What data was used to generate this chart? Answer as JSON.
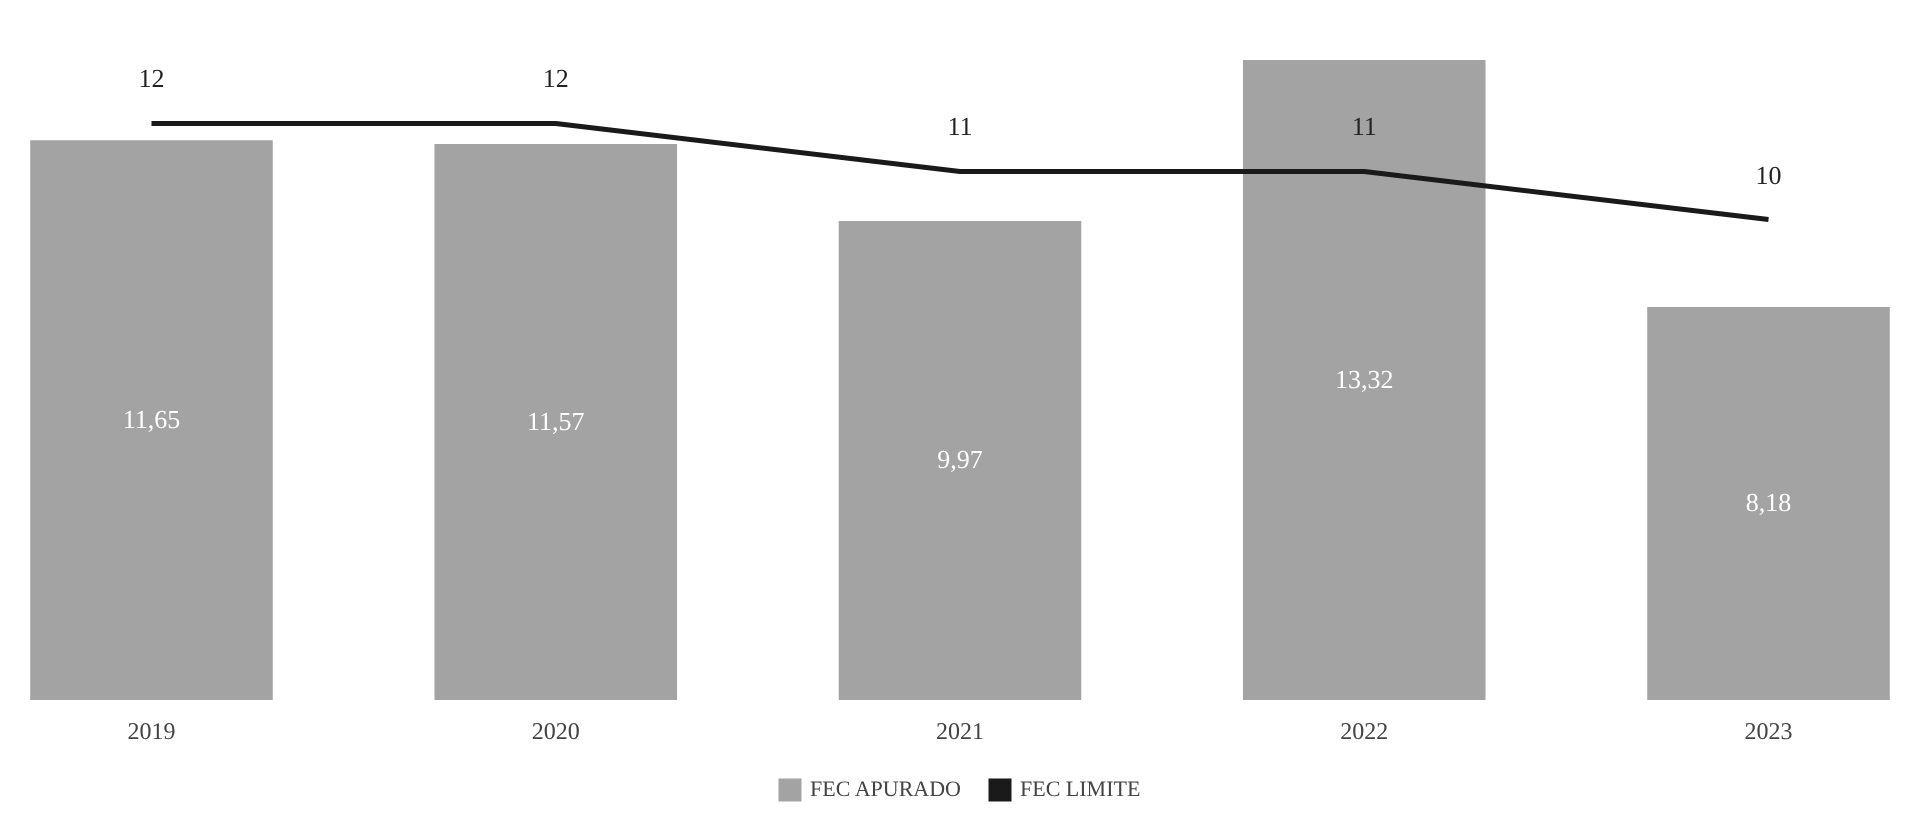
{
  "chart_data": {
    "type": "bar",
    "categories": [
      "2019",
      "2020",
      "2021",
      "2022",
      "2023"
    ],
    "series": [
      {
        "name": "FEC APURADO",
        "color": "#a3a3a3",
        "values": [
          11.65,
          11.57,
          9.97,
          13.32,
          8.18
        ],
        "value_labels": [
          "11,65",
          "11,57",
          "9,97",
          "13,32",
          "8,18"
        ]
      },
      {
        "name": "FEC LIMITE",
        "type": "line",
        "color": "#1a1a1a",
        "values": [
          12,
          12,
          11,
          11,
          10
        ],
        "value_labels": [
          "12",
          "12",
          "11",
          "11",
          "10"
        ]
      }
    ],
    "legend": "bottom",
    "grid": false
  }
}
